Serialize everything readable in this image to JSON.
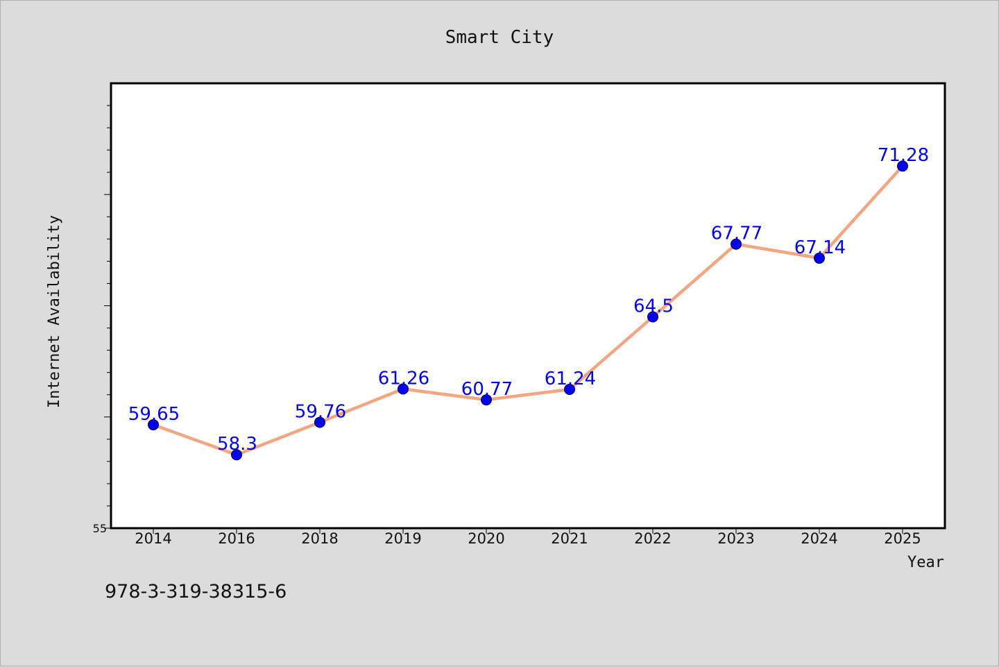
{
  "chart_data": {
    "type": "line",
    "title": "Smart City",
    "xlabel": "Year",
    "ylabel": "Internet Availability",
    "categories": [
      "2014",
      "2016",
      "2018",
      "2019",
      "2020",
      "2021",
      "2022",
      "2023",
      "2024",
      "2025"
    ],
    "series": [
      {
        "values": [
          59.65,
          58.3,
          59.76,
          61.26,
          60.77,
          61.24,
          64.5,
          67.77,
          67.14,
          71.28
        ],
        "labels": [
          "59.65",
          "58.3",
          "59.76",
          "61.26",
          "60.77",
          "61.24",
          "64.5",
          "67.77",
          "67.14",
          "71.28"
        ],
        "line_color": "#f4a582",
        "marker_color": "#0000ee"
      }
    ],
    "y_tick_labels": [
      "55"
    ],
    "ylim": [
      55,
      75
    ],
    "grid": false,
    "background_color": "#dcdcdc",
    "plot_background_color": "#ffffff"
  },
  "footnote": "978-3-319-38315-6"
}
